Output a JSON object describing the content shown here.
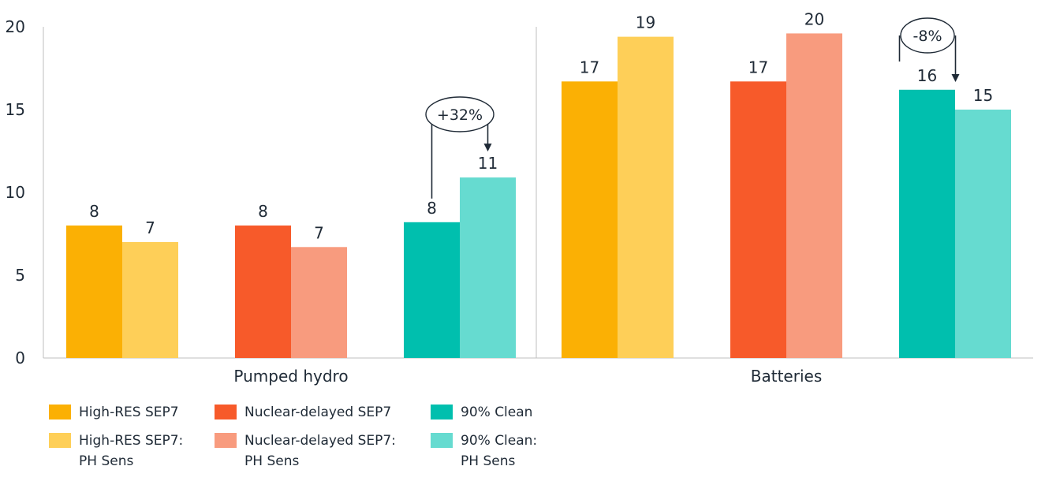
{
  "chart_data": {
    "type": "bar",
    "groups": [
      "Pumped hydro",
      "Batteries"
    ],
    "series": [
      {
        "name": "High-RES SEP7",
        "color": "#FBB004",
        "values": [
          8.0,
          16.7
        ],
        "labels": [
          "8",
          "17"
        ]
      },
      {
        "name": "High-RES SEP7:\nPH Sens",
        "color": "#FECF58",
        "values": [
          7.0,
          19.4
        ],
        "labels": [
          "7",
          "19"
        ]
      },
      {
        "name": "Nuclear-delayed SEP7",
        "color": "#F75A2A",
        "values": [
          8.0,
          16.7
        ],
        "labels": [
          "8",
          "17"
        ]
      },
      {
        "name": "Nuclear-delayed SEP7:\nPH Sens",
        "color": "#F89B7E",
        "values": [
          6.7,
          19.6
        ],
        "labels": [
          "7",
          "20"
        ]
      },
      {
        "name": "90% Clean",
        "color": "#00BFAE",
        "values": [
          8.2,
          16.2
        ],
        "labels": [
          "8",
          "16"
        ]
      },
      {
        "name": "90% Clean:\nPH Sens",
        "color": "#66DBD0",
        "values": [
          10.9,
          15.0
        ],
        "labels": [
          "11",
          "15"
        ]
      }
    ],
    "ylim": [
      0,
      20
    ],
    "yticks": [
      0,
      5,
      10,
      15,
      20
    ],
    "annotations": [
      {
        "group": "Pumped hydro",
        "text": "+32%"
      },
      {
        "group": "Batteries",
        "text": "-8%"
      }
    ],
    "legend_position": "bottom-left",
    "grid": false
  }
}
